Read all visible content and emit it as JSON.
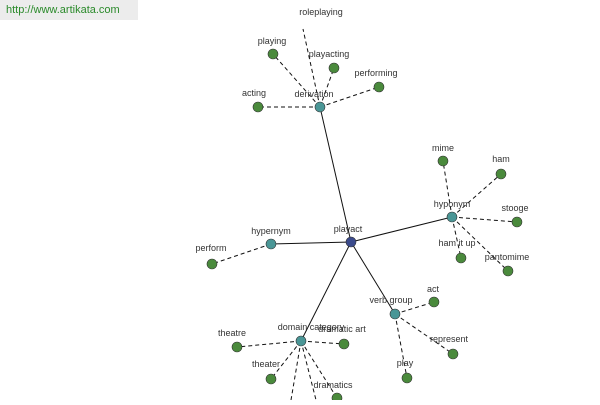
{
  "watermark": "http://www.artikata.com",
  "nodes": [
    {
      "label": "playact"
    },
    {
      "label": "derivation"
    },
    {
      "label": "hyponym"
    },
    {
      "label": "hypernym"
    },
    {
      "label": "domain category"
    },
    {
      "label": "verb group"
    },
    {
      "label": "acting"
    },
    {
      "label": "playing"
    },
    {
      "label": "roleplaying"
    },
    {
      "label": "playacting"
    },
    {
      "label": "performing"
    },
    {
      "label": "mime"
    },
    {
      "label": "ham"
    },
    {
      "label": "stooge"
    },
    {
      "label": "pantomime"
    },
    {
      "label": "ham it up"
    },
    {
      "label": "perform"
    },
    {
      "label": "theatre"
    },
    {
      "label": "dramatic art"
    },
    {
      "label": "theater"
    },
    {
      "label": "dramatics"
    },
    {
      "label": "act"
    },
    {
      "label": "represent"
    },
    {
      "label": "play"
    }
  ]
}
